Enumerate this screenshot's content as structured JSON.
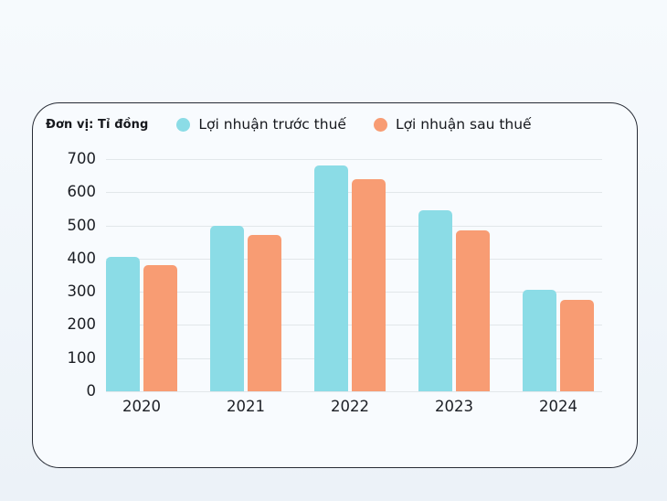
{
  "card": {
    "unit_label": "Đơn vị: Tỉ đồng"
  },
  "chart_data": {
    "type": "bar",
    "title": "",
    "unit": "Đơn vị: Tỉ đồng",
    "categories": [
      "2020",
      "2021",
      "2022",
      "2023",
      "2024"
    ],
    "series": [
      {
        "name": "Lợi nhuận trước thuế",
        "color": "#8BDCE6",
        "values": [
          405,
          500,
          680,
          545,
          305
        ]
      },
      {
        "name": "Lợi nhuận sau thuế",
        "color": "#F89C73",
        "values": [
          380,
          470,
          640,
          485,
          275
        ]
      }
    ],
    "ylim": [
      0,
      700
    ],
    "yticks": [
      0,
      100,
      200,
      300,
      400,
      500,
      600,
      700
    ],
    "grid": true,
    "legend_position": "top"
  },
  "colors": {
    "page_background": "#eef4f9",
    "card_background": "#f8fbfe",
    "card_border": "#272b35",
    "gridline": "#e2e7ea",
    "text": "#16181d"
  }
}
